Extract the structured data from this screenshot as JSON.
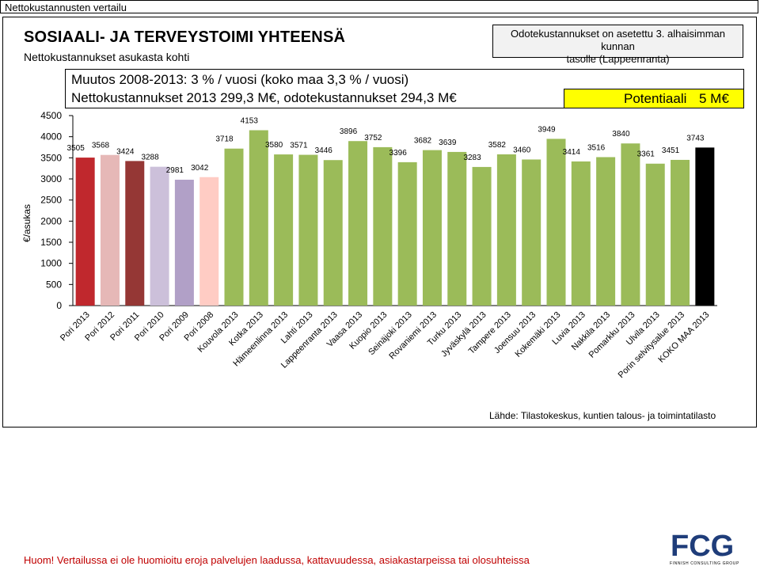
{
  "window_title": "Nettokustannusten vertailu",
  "header": {
    "title": "SOSIAALI- JA TERVEYSTOIMI YHTEENSÄ",
    "subtitle": "Nettokustannukset asukasta kohti"
  },
  "reference_note": {
    "line1": "Odotekustannukset on asetettu 3. alhaisimman kunnan",
    "line2": "tasolle (Lappeenranta)"
  },
  "info": {
    "line1": "Muutos 2008-2013: 3 % / vuosi (koko maa 3,3 % / vuosi)",
    "line2": "Nettokustannukset 2013 299,3 M€, odotekustannukset 294,3 M€",
    "potential_label": "Potentiaali",
    "potential_value": "5 M€"
  },
  "source": "Lähde: Tilastokeskus, kuntien talous- ja toimintatilasto",
  "warning": "Huom! Vertailussa ei ole huomioitu eroja palvelujen laadussa, kattavuudessa, asiakastarpeissa tai olosuhteissa",
  "logo": {
    "text": "FCG",
    "subtitle": "FINNISH CONSULTING GROUP",
    "color": "#1f3d7a"
  },
  "colors": {
    "highlight": "#ffff00",
    "warning": "#c00000",
    "grid": "#d9d9d9"
  },
  "chart_data": {
    "type": "bar",
    "title": "",
    "xlabel": "",
    "ylabel": "€/asukas",
    "ylim": [
      0,
      4500
    ],
    "yticks": [
      0,
      500,
      1000,
      1500,
      2000,
      2500,
      3000,
      3500,
      4000,
      4500
    ],
    "grid": false,
    "categories": [
      "Pori 2013",
      "Pori 2012",
      "Pori 2011",
      "Pori 2010",
      "Pori 2009",
      "Pori 2008",
      "Kouvola 2013",
      "Kotka 2013",
      "Hämeenlinna 2013",
      "Lahti 2013",
      "Lappeenranta 2013",
      "Vaasa 2013",
      "Kuopio 2013",
      "Seinäjoki 2013",
      "Rovaniemi 2013",
      "Turku 2013",
      "Jyväskylä 2013",
      "Tampere 2013",
      "Joensuu 2013",
      "Kokemäki 2013",
      "Luvia 2013",
      "Nakkila 2013",
      "Pomarkku 2013",
      "Ulvila 2013",
      "Porin selvitysalue 2013",
      "KOKO MAA 2013"
    ],
    "values": [
      3505,
      3568,
      3424,
      3288,
      2981,
      3042,
      3718,
      4153,
      3580,
      3571,
      3446,
      3896,
      3752,
      3396,
      3682,
      3639,
      3283,
      3582,
      3460,
      3949,
      3414,
      3516,
      3840,
      3361,
      3451,
      3743
    ],
    "bar_colors": [
      "#c0282d",
      "#e6b8b7",
      "#953735",
      "#ccc0da",
      "#b1a0c7",
      "#ffccc4",
      "#9bbb59",
      "#9bbb59",
      "#9bbb59",
      "#9bbb59",
      "#9bbb59",
      "#9bbb59",
      "#9bbb59",
      "#9bbb59",
      "#9bbb59",
      "#9bbb59",
      "#9bbb59",
      "#9bbb59",
      "#9bbb59",
      "#9bbb59",
      "#9bbb59",
      "#9bbb59",
      "#9bbb59",
      "#9bbb59",
      "#9bbb59",
      "#000000"
    ]
  }
}
